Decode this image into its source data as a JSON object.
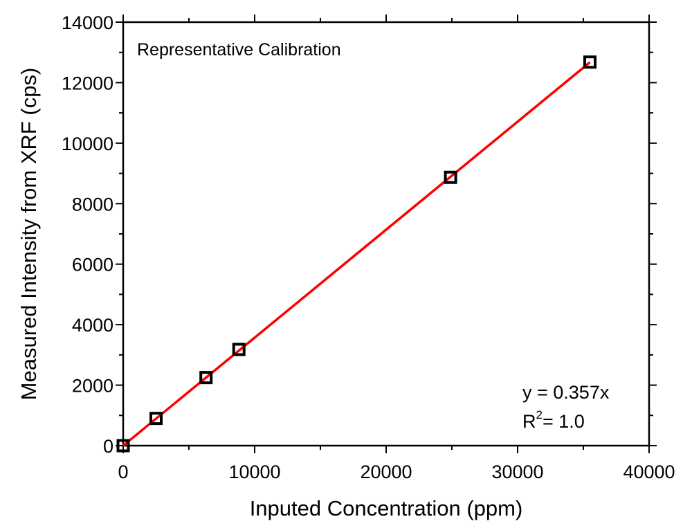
{
  "chart_data": {
    "type": "scatter",
    "title": "Representative Calibration",
    "xlabel": "Inputed Concentration (ppm)",
    "ylabel": "Measured Intensity from XRF (cps)",
    "xlim": [
      0,
      40000
    ],
    "ylim": [
      0,
      14000
    ],
    "x_ticks": [
      0,
      10000,
      20000,
      30000,
      40000
    ],
    "y_ticks": [
      0,
      2000,
      4000,
      6000,
      8000,
      10000,
      12000,
      14000
    ],
    "x_tick_labels": [
      "0",
      "10000",
      "20000",
      "30000",
      "40000"
    ],
    "y_tick_labels": [
      "0",
      "2000",
      "4000",
      "6000",
      "8000",
      "10000",
      "12000",
      "14000"
    ],
    "grid": false,
    "series": [
      {
        "name": "data",
        "marker": "open-square",
        "color": "#000000",
        "x": [
          0,
          2500,
          6300,
          8800,
          24900,
          35500
        ],
        "y": [
          0,
          900,
          2250,
          3180,
          8870,
          12680
        ]
      },
      {
        "name": "fit",
        "style": "line",
        "color": "#ff0000",
        "x": [
          0,
          35500
        ],
        "y": [
          0,
          12673.5
        ]
      }
    ],
    "annotation": {
      "equation": "y = 0.357x",
      "r2_base": "R",
      "r2_sup": "2",
      "r2_value": "= 1.0"
    }
  }
}
